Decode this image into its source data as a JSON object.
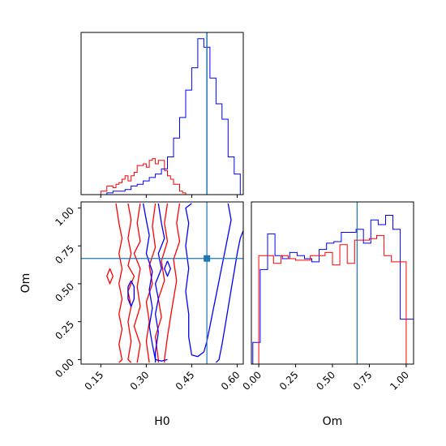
{
  "colors": {
    "series_a": "#ff0000",
    "series_b": "#0000ff",
    "truth": "#1f77b4",
    "axes": "#000000"
  },
  "chart_data": [
    {
      "panel": "top-left",
      "type": "histogram",
      "parameter": "H0",
      "x_range": [
        0.085,
        0.62
      ],
      "truth": 0.5,
      "show_y_ticks": false,
      "show_x_tick_labels": false,
      "xticks": [
        0.15,
        0.3,
        0.45,
        0.6
      ],
      "series": [
        {
          "color": "red",
          "edges": [
            0.1,
            0.11,
            0.12,
            0.13,
            0.14,
            0.15,
            0.16,
            0.17,
            0.18,
            0.19,
            0.2,
            0.21,
            0.22,
            0.23,
            0.24,
            0.25,
            0.26,
            0.27,
            0.28,
            0.29,
            0.3,
            0.31,
            0.32,
            0.33,
            0.34,
            0.35,
            0.36,
            0.37,
            0.38,
            0.39,
            0.4,
            0.41,
            0.42,
            0.43,
            0.44,
            0.45
          ],
          "counts": [
            0,
            0,
            0,
            0,
            0,
            2,
            2,
            5,
            5,
            4,
            6,
            7,
            9,
            11,
            8,
            11,
            13,
            17,
            17,
            18,
            16,
            20,
            21,
            18,
            20,
            20,
            14,
            11,
            9,
            6,
            6,
            2,
            1,
            0,
            0
          ]
        },
        {
          "color": "blue",
          "edges": [
            0.13,
            0.15,
            0.17,
            0.19,
            0.21,
            0.23,
            0.25,
            0.27,
            0.29,
            0.31,
            0.33,
            0.35,
            0.37,
            0.39,
            0.41,
            0.43,
            0.45,
            0.47,
            0.49,
            0.51,
            0.53,
            0.55,
            0.57,
            0.59,
            0.61
          ],
          "counts": [
            0,
            0,
            1,
            2,
            2,
            3,
            5,
            6,
            8,
            10,
            12,
            15,
            22,
            33,
            45,
            61,
            74,
            91,
            86,
            68,
            53,
            44,
            22,
            12
          ]
        }
      ]
    },
    {
      "panel": "bottom-left",
      "type": "contour",
      "x_parameter": "H0",
      "y_parameter": "Om",
      "x_range": [
        0.085,
        0.62
      ],
      "y_range": [
        -0.03,
        1.04
      ],
      "truth": {
        "x": 0.5,
        "y": 0.667
      },
      "xlabel": "H0",
      "ylabel": "Om",
      "xticks": [
        0.15,
        0.3,
        0.45,
        0.6
      ],
      "xtick_labels": [
        "0.15",
        "0.30",
        "0.45",
        "0.60"
      ],
      "yticks": [
        0.0,
        0.25,
        0.5,
        0.75,
        1.0
      ],
      "ytick_labels": [
        "0.00",
        "0.25",
        "0.50",
        "0.75",
        "1.00"
      ],
      "contours": [
        {
          "color": "red",
          "points": [
            [
              0.2,
              1.03
            ],
            [
              0.21,
              0.9
            ],
            [
              0.22,
              0.8
            ],
            [
              0.21,
              0.7
            ],
            [
              0.22,
              0.6
            ],
            [
              0.21,
              0.5
            ],
            [
              0.22,
              0.4
            ],
            [
              0.21,
              0.3
            ],
            [
              0.22,
              0.2
            ],
            [
              0.21,
              0.1
            ],
            [
              0.22,
              0.0
            ],
            [
              0.21,
              -0.02
            ]
          ]
        },
        {
          "color": "red",
          "points": [
            [
              0.24,
              1.03
            ],
            [
              0.25,
              0.92
            ],
            [
              0.24,
              0.8
            ],
            [
              0.25,
              0.7
            ],
            [
              0.24,
              0.62
            ],
            [
              0.26,
              0.55
            ],
            [
              0.24,
              0.45
            ],
            [
              0.25,
              0.35
            ],
            [
              0.24,
              0.25
            ],
            [
              0.25,
              0.12
            ],
            [
              0.24,
              0.0
            ],
            [
              0.25,
              -0.02
            ]
          ]
        },
        {
          "color": "red",
          "points": [
            [
              0.28,
              1.03
            ],
            [
              0.27,
              0.9
            ],
            [
              0.28,
              0.78
            ],
            [
              0.26,
              0.7
            ],
            [
              0.28,
              0.6
            ],
            [
              0.27,
              0.48
            ],
            [
              0.28,
              0.35
            ],
            [
              0.26,
              0.22
            ],
            [
              0.28,
              0.1
            ],
            [
              0.27,
              -0.02
            ]
          ]
        },
        {
          "color": "red",
          "points": [
            [
              0.33,
              1.03
            ],
            [
              0.32,
              0.88
            ],
            [
              0.33,
              0.74
            ],
            [
              0.31,
              0.62
            ],
            [
              0.32,
              0.5
            ],
            [
              0.3,
              0.38
            ],
            [
              0.31,
              0.25
            ],
            [
              0.3,
              0.12
            ],
            [
              0.31,
              -0.02
            ]
          ]
        },
        {
          "color": "red",
          "points": [
            [
              0.37,
              1.03
            ],
            [
              0.36,
              0.9
            ],
            [
              0.37,
              0.78
            ],
            [
              0.35,
              0.65
            ],
            [
              0.36,
              0.52
            ],
            [
              0.34,
              0.4
            ],
            [
              0.35,
              0.28
            ],
            [
              0.33,
              0.15
            ],
            [
              0.34,
              0.0
            ],
            [
              0.34,
              -0.02
            ]
          ]
        },
        {
          "color": "red",
          "points": [
            [
              0.41,
              1.03
            ],
            [
              0.4,
              0.9
            ],
            [
              0.41,
              0.78
            ],
            [
              0.39,
              0.66
            ],
            [
              0.4,
              0.52
            ],
            [
              0.39,
              0.4
            ],
            [
              0.38,
              0.28
            ],
            [
              0.37,
              0.15
            ],
            [
              0.36,
              0.0
            ],
            [
              0.36,
              -0.02
            ]
          ]
        },
        {
          "color": "red",
          "points": [
            [
              0.18,
              0.6
            ],
            [
              0.17,
              0.55
            ],
            [
              0.18,
              0.5
            ],
            [
              0.19,
              0.55
            ],
            [
              0.18,
              0.6
            ]
          ]
        },
        {
          "color": "blue",
          "points": [
            [
              0.29,
              1.03
            ],
            [
              0.3,
              0.92
            ],
            [
              0.31,
              0.82
            ],
            [
              0.3,
              0.7
            ],
            [
              0.32,
              0.58
            ],
            [
              0.31,
              0.46
            ],
            [
              0.32,
              0.34
            ],
            [
              0.31,
              0.22
            ],
            [
              0.32,
              0.1
            ],
            [
              0.33,
              0.0
            ],
            [
              0.35,
              -0.01
            ],
            [
              0.37,
              0.0
            ]
          ]
        },
        {
          "color": "blue",
          "points": [
            [
              0.34,
              1.03
            ],
            [
              0.35,
              0.9
            ],
            [
              0.36,
              0.8
            ],
            [
              0.34,
              0.7
            ],
            [
              0.35,
              0.6
            ],
            [
              0.33,
              0.5
            ],
            [
              0.34,
              0.4
            ],
            [
              0.33,
              0.3
            ],
            [
              0.34,
              0.18
            ],
            [
              0.33,
              0.05
            ],
            [
              0.33,
              -0.02
            ]
          ]
        },
        {
          "color": "blue",
          "points": [
            [
              0.57,
              1.03
            ],
            [
              0.58,
              0.92
            ],
            [
              0.57,
              0.82
            ],
            [
              0.56,
              0.72
            ],
            [
              0.55,
              0.62
            ],
            [
              0.54,
              0.52
            ],
            [
              0.53,
              0.42
            ],
            [
              0.52,
              0.32
            ],
            [
              0.51,
              0.22
            ],
            [
              0.5,
              0.12
            ],
            [
              0.49,
              0.05
            ],
            [
              0.47,
              0.02
            ],
            [
              0.45,
              0.03
            ],
            [
              0.44,
              0.15
            ],
            [
              0.44,
              0.3
            ],
            [
              0.43,
              0.45
            ],
            [
              0.44,
              0.6
            ],
            [
              0.43,
              0.75
            ],
            [
              0.44,
              0.9
            ],
            [
              0.43,
              1.0
            ],
            [
              0.45,
              1.03
            ]
          ]
        },
        {
          "color": "blue",
          "points": [
            [
              0.62,
              0.85
            ],
            [
              0.61,
              0.8
            ],
            [
              0.6,
              0.7
            ],
            [
              0.59,
              0.58
            ],
            [
              0.58,
              0.46
            ],
            [
              0.57,
              0.34
            ],
            [
              0.56,
              0.22
            ],
            [
              0.55,
              0.1
            ],
            [
              0.54,
              0.0
            ],
            [
              0.53,
              -0.02
            ]
          ]
        },
        {
          "color": "blue",
          "points": [
            [
              0.25,
              0.52
            ],
            [
              0.24,
              0.48
            ],
            [
              0.24,
              0.4
            ],
            [
              0.25,
              0.35
            ],
            [
              0.26,
              0.4
            ],
            [
              0.26,
              0.48
            ],
            [
              0.25,
              0.52
            ]
          ]
        },
        {
          "color": "blue",
          "points": [
            [
              0.37,
              0.65
            ],
            [
              0.36,
              0.6
            ],
            [
              0.37,
              0.55
            ],
            [
              0.38,
              0.6
            ],
            [
              0.37,
              0.65
            ]
          ]
        }
      ]
    },
    {
      "panel": "bottom-right",
      "type": "histogram",
      "parameter": "Om",
      "x_range": [
        -0.05,
        1.05
      ],
      "truth": 0.667,
      "show_y_ticks": false,
      "xlabel": "Om",
      "xticks": [
        0.0,
        0.25,
        0.5,
        0.75,
        1.0
      ],
      "xtick_labels": [
        "0.00",
        "0.25",
        "0.50",
        "0.75",
        "1.00"
      ],
      "series": [
        {
          "color": "blue",
          "edges": [
            -0.04,
            0.01,
            0.06,
            0.11,
            0.16,
            0.21,
            0.26,
            0.31,
            0.36,
            0.41,
            0.46,
            0.51,
            0.56,
            0.61,
            0.66,
            0.71,
            0.76,
            0.81,
            0.86,
            0.91,
            0.96,
            1.01,
            1.05
          ],
          "counts": [
            14,
            61,
            84,
            70,
            68,
            72,
            70,
            68,
            66,
            74,
            78,
            79,
            85,
            85,
            87,
            78,
            93,
            90,
            96,
            87,
            29,
            29
          ]
        },
        {
          "color": "red",
          "edges": [
            0.0,
            0.05,
            0.1,
            0.15,
            0.2,
            0.25,
            0.3,
            0.35,
            0.4,
            0.45,
            0.5,
            0.55,
            0.6,
            0.65,
            0.7,
            0.75,
            0.8,
            0.85,
            0.9,
            0.95,
            1.0
          ],
          "counts": [
            70,
            70,
            65,
            70,
            68,
            67,
            67,
            70,
            70,
            72,
            64,
            77,
            65,
            80,
            80,
            81,
            83,
            70,
            66,
            66
          ]
        }
      ]
    }
  ]
}
